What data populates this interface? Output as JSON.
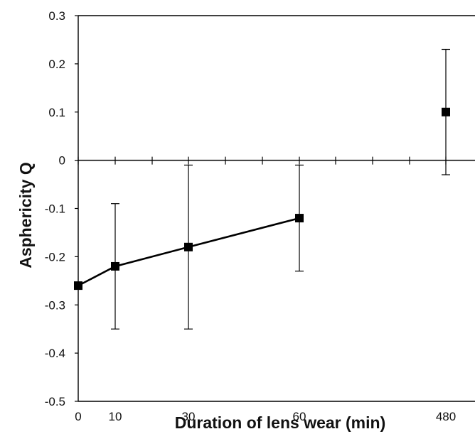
{
  "chart_data": {
    "type": "line",
    "title": "",
    "xlabel": "Duration of lens wear (min)",
    "ylabel": "Asphericity Q",
    "categories": [
      "0",
      "10",
      "30",
      "60",
      "480"
    ],
    "ylim": [
      -0.5,
      0.3
    ],
    "y_ticks": [
      "0.3",
      "0.2",
      "0.1",
      "0",
      "-0.1",
      "-0.2",
      "-0.3",
      "-0.4",
      "-0.5"
    ],
    "grid": false,
    "legend": "none",
    "series": [
      {
        "values": [
          -0.26,
          -0.22,
          -0.18,
          -0.12,
          0.1
        ],
        "error_low": [
          -0.26,
          -0.35,
          -0.35,
          -0.23,
          -0.03
        ],
        "error_high": [
          -0.26,
          -0.09,
          -0.01,
          -0.01,
          0.23
        ],
        "connected_points": 4
      }
    ],
    "colors": {
      "line": "#000000",
      "marker": "#000000"
    }
  }
}
